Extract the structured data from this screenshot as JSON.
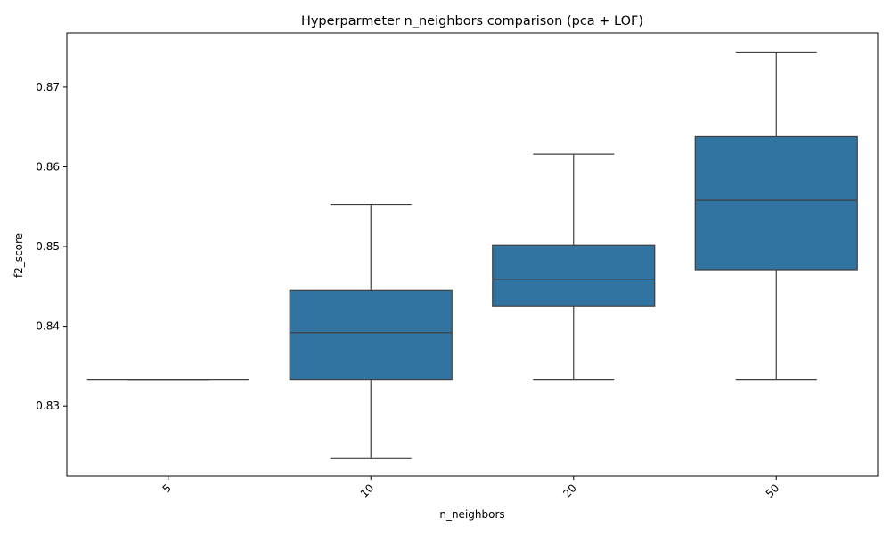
{
  "chart_data": {
    "type": "box",
    "title": "Hyperparmeter n_neighbors comparison (pca + LOF)",
    "xlabel": "n_neighbors",
    "ylabel": "f2_score",
    "categories": [
      "5",
      "10",
      "20",
      "50"
    ],
    "ylim": [
      0.8212,
      0.8768
    ],
    "yticks": [
      0.83,
      0.84,
      0.85,
      0.86,
      0.87
    ],
    "ytick_labels": [
      "0.83",
      "0.84",
      "0.85",
      "0.86",
      "0.87"
    ],
    "x_tick_rotation": 45,
    "grid": false,
    "box_color": "#3274a1",
    "line_color": "#3f3f3f",
    "boxes": [
      {
        "category": "5",
        "whisker_low": 0.8333,
        "q1": 0.8333,
        "median": 0.8333,
        "q3": 0.8333,
        "whisker_high": 0.8333
      },
      {
        "category": "10",
        "whisker_low": 0.8234,
        "q1": 0.8333,
        "median": 0.8392,
        "q3": 0.8445,
        "whisker_high": 0.8553
      },
      {
        "category": "20",
        "whisker_low": 0.8333,
        "q1": 0.8425,
        "median": 0.8459,
        "q3": 0.8502,
        "whisker_high": 0.8616
      },
      {
        "category": "50",
        "whisker_low": 0.8333,
        "q1": 0.8471,
        "median": 0.8558,
        "q3": 0.8638,
        "whisker_high": 0.8744
      }
    ]
  }
}
